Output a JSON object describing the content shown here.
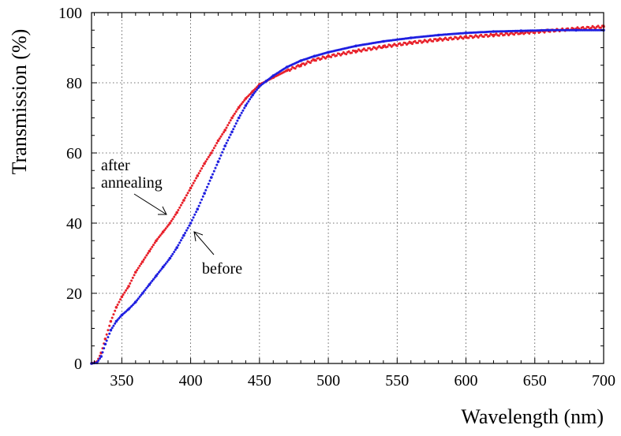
{
  "chart_data": {
    "type": "scatter",
    "title": "",
    "xlabel": "Wavelength (nm)",
    "ylabel": "Transmission (%)",
    "xlim": [
      328,
      700
    ],
    "ylim": [
      0,
      100
    ],
    "x_ticks": [
      "350",
      "400",
      "450",
      "500",
      "550",
      "600",
      "650",
      "700"
    ],
    "y_ticks": [
      "0",
      "20",
      "40",
      "60",
      "80",
      "100"
    ],
    "grid": true,
    "grid_style": "dotted",
    "legend": "none",
    "annotations": [
      {
        "text": "after",
        "series_index": 0
      },
      {
        "text": "annealing",
        "series_index": 0
      },
      {
        "text": "before",
        "series_index": 1
      }
    ],
    "series": [
      {
        "color": "#e8202a",
        "points": [
          [
            328,
            0
          ],
          [
            332,
            0.5
          ],
          [
            335,
            3
          ],
          [
            338,
            7
          ],
          [
            342,
            12
          ],
          [
            346,
            16
          ],
          [
            350,
            19
          ],
          [
            355,
            22
          ],
          [
            360,
            26
          ],
          [
            365,
            29
          ],
          [
            370,
            32
          ],
          [
            375,
            35
          ],
          [
            380,
            37.5
          ],
          [
            385,
            40
          ],
          [
            390,
            43
          ],
          [
            395,
            46.5
          ],
          [
            400,
            50
          ],
          [
            405,
            53.5
          ],
          [
            410,
            57
          ],
          [
            415,
            60
          ],
          [
            420,
            63.5
          ],
          [
            425,
            66.5
          ],
          [
            430,
            70
          ],
          [
            435,
            73
          ],
          [
            440,
            75.5
          ],
          [
            445,
            77.5
          ],
          [
            450,
            79.5
          ],
          [
            455,
            80.5
          ],
          [
            460,
            81.5
          ],
          [
            470,
            83.5
          ],
          [
            480,
            85
          ],
          [
            490,
            86.5
          ],
          [
            500,
            87.5
          ],
          [
            520,
            89
          ],
          [
            540,
            90.3
          ],
          [
            560,
            91.4
          ],
          [
            580,
            92.3
          ],
          [
            600,
            93
          ],
          [
            620,
            93.6
          ],
          [
            640,
            94.2
          ],
          [
            660,
            94.8
          ],
          [
            680,
            95.4
          ],
          [
            700,
            96
          ]
        ]
      },
      {
        "color": "#1f1fe0",
        "points": [
          [
            328,
            0
          ],
          [
            332,
            0.2
          ],
          [
            335,
            2
          ],
          [
            338,
            5.5
          ],
          [
            342,
            9.5
          ],
          [
            346,
            12
          ],
          [
            350,
            13.8
          ],
          [
            355,
            15.5
          ],
          [
            360,
            17.5
          ],
          [
            365,
            20
          ],
          [
            370,
            22.5
          ],
          [
            375,
            25
          ],
          [
            380,
            27.5
          ],
          [
            385,
            30
          ],
          [
            390,
            33
          ],
          [
            395,
            36.5
          ],
          [
            400,
            40
          ],
          [
            405,
            44
          ],
          [
            410,
            48.5
          ],
          [
            415,
            53
          ],
          [
            420,
            57.5
          ],
          [
            425,
            62
          ],
          [
            430,
            66
          ],
          [
            435,
            70
          ],
          [
            440,
            73.5
          ],
          [
            445,
            76.5
          ],
          [
            450,
            79
          ],
          [
            455,
            80.5
          ],
          [
            460,
            82
          ],
          [
            470,
            84.5
          ],
          [
            480,
            86.3
          ],
          [
            490,
            87.6
          ],
          [
            500,
            88.7
          ],
          [
            520,
            90.5
          ],
          [
            540,
            91.8
          ],
          [
            560,
            92.8
          ],
          [
            580,
            93.6
          ],
          [
            600,
            94.2
          ],
          [
            620,
            94.6
          ],
          [
            640,
            94.8
          ],
          [
            660,
            95
          ],
          [
            680,
            95
          ],
          [
            700,
            95
          ]
        ]
      }
    ]
  }
}
